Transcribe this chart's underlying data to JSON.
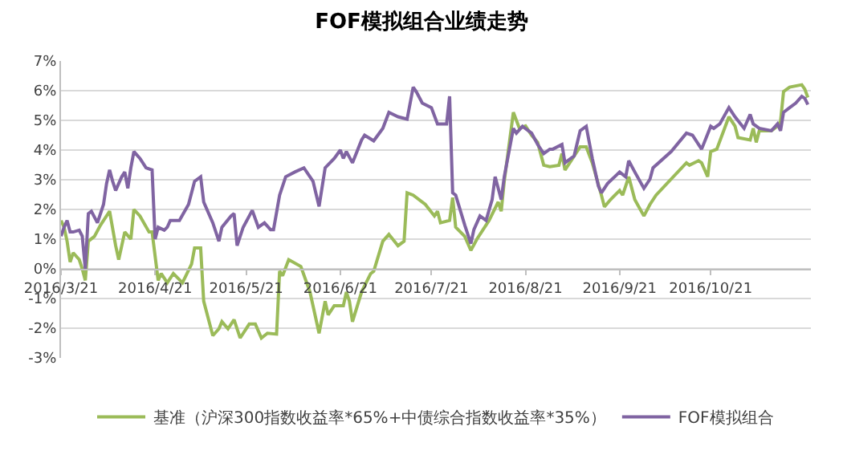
{
  "chart_data": {
    "type": "line",
    "title": "FOF模拟组合业绩走势",
    "xlim": [
      "2016-03-21",
      "2016-11-23"
    ],
    "xticks": [
      {
        "value": "2016-03-21",
        "label": "2016/3/21"
      },
      {
        "value": "2016-04-21",
        "label": "2016/4/21"
      },
      {
        "value": "2016-05-21",
        "label": "2016/5/21"
      },
      {
        "value": "2016-06-21",
        "label": "2016/6/21"
      },
      {
        "value": "2016-07-21",
        "label": "2016/7/21"
      },
      {
        "value": "2016-08-21",
        "label": "2016/8/21"
      },
      {
        "value": "2016-09-21",
        "label": "2016/9/21"
      },
      {
        "value": "2016-10-21",
        "label": "2016/10/21"
      }
    ],
    "ylim": [
      -3,
      7
    ],
    "yticks": [
      {
        "value": -3,
        "label": "-3%"
      },
      {
        "value": -2,
        "label": "-2%"
      },
      {
        "value": -1,
        "label": "-1%"
      },
      {
        "value": 0,
        "label": "0%"
      },
      {
        "value": 1,
        "label": "1%"
      },
      {
        "value": 2,
        "label": "2%"
      },
      {
        "value": 3,
        "label": "3%"
      },
      {
        "value": 4,
        "label": "4%"
      },
      {
        "value": 5,
        "label": "5%"
      },
      {
        "value": 6,
        "label": "6%"
      },
      {
        "value": 7,
        "label": "7%"
      }
    ],
    "grid": "y",
    "legend": "bottom",
    "marker": "none",
    "line_style": "solid",
    "series": [
      {
        "name": "基准（沪深300指数收益率*65%+中债综合指数收益率*35%）",
        "color": "#9bbb59",
        "x": [
          "2016-03-21",
          "2016-03-22",
          "2016-03-23",
          "2016-03-24",
          "2016-03-25",
          "2016-03-27",
          "2016-03-28",
          "2016-03-29",
          "2016-03-30",
          "2016-04-01",
          "2016-04-03",
          "2016-04-06",
          "2016-04-08",
          "2016-04-09",
          "2016-04-11",
          "2016-04-13",
          "2016-04-14",
          "2016-04-16",
          "2016-04-19",
          "2016-04-20",
          "2016-04-22",
          "2016-04-23",
          "2016-04-25",
          "2016-04-27",
          "2016-04-30",
          "2016-05-03",
          "2016-05-04",
          "2016-05-06",
          "2016-05-07",
          "2016-05-10",
          "2016-05-12",
          "2016-05-13",
          "2016-05-15",
          "2016-05-17",
          "2016-05-19",
          "2016-05-22",
          "2016-05-24",
          "2016-05-26",
          "2016-05-28",
          "2016-05-31",
          "2016-06-01",
          "2016-06-02",
          "2016-06-04",
          "2016-06-08",
          "2016-06-11",
          "2016-06-14",
          "2016-06-16",
          "2016-06-17",
          "2016-06-19",
          "2016-06-22",
          "2016-06-23",
          "2016-06-24",
          "2016-06-25",
          "2016-06-28",
          "2016-07-01",
          "2016-07-02",
          "2016-07-05",
          "2016-07-07",
          "2016-07-10",
          "2016-07-12",
          "2016-07-13",
          "2016-07-15",
          "2016-07-19",
          "2016-07-22",
          "2016-07-23",
          "2016-07-24",
          "2016-07-27",
          "2016-07-28",
          "2016-07-29",
          "2016-08-01",
          "2016-08-03",
          "2016-08-05",
          "2016-08-09",
          "2016-08-12",
          "2016-08-13",
          "2016-08-14",
          "2016-08-17",
          "2016-08-19",
          "2016-08-21",
          "2016-08-23",
          "2016-08-25",
          "2016-08-27",
          "2016-08-29",
          "2016-09-01",
          "2016-09-02",
          "2016-09-03",
          "2016-09-05",
          "2016-09-08",
          "2016-09-10",
          "2016-09-12",
          "2016-09-15",
          "2016-09-16",
          "2016-09-18",
          "2016-09-21",
          "2016-09-22",
          "2016-09-24",
          "2016-09-26",
          "2016-09-29",
          "2016-10-01",
          "2016-10-03",
          "2016-10-13",
          "2016-10-14",
          "2016-10-17",
          "2016-10-18",
          "2016-10-20",
          "2016-10-21",
          "2016-10-23",
          "2016-10-27",
          "2016-10-29",
          "2016-10-30",
          "2016-11-03",
          "2016-11-04",
          "2016-11-05",
          "2016-11-06",
          "2016-11-10",
          "2016-11-12",
          "2016-11-13",
          "2016-11-14",
          "2016-11-16",
          "2016-11-20",
          "2016-11-21",
          "2016-11-22"
        ],
        "values": [
          1.63,
          1.4,
          0.93,
          0.23,
          0.54,
          0.31,
          0.0,
          -0.39,
          0.93,
          1.09,
          1.47,
          1.94,
          0.78,
          0.31,
          1.24,
          1.0,
          2.0,
          1.78,
          1.24,
          1.24,
          -0.39,
          -0.16,
          -0.47,
          -0.16,
          -0.47,
          0.16,
          0.7,
          0.7,
          -1.09,
          -2.25,
          -2.02,
          -1.78,
          -2.02,
          -1.71,
          -2.33,
          -1.86,
          -1.86,
          -2.33,
          -2.17,
          -2.2,
          -0.08,
          -0.23,
          0.31,
          0.08,
          -0.78,
          -2.17,
          -1.09,
          -1.55,
          -1.24,
          -1.24,
          -0.78,
          -1.09,
          -1.78,
          -0.78,
          -0.16,
          -0.08,
          0.93,
          1.16,
          0.78,
          0.93,
          2.56,
          2.48,
          2.17,
          1.78,
          1.94,
          1.55,
          1.63,
          2.4,
          1.4,
          1.09,
          0.62,
          1.0,
          1.63,
          2.25,
          1.94,
          2.95,
          5.27,
          4.73,
          4.81,
          4.5,
          4.26,
          3.49,
          3.44,
          3.49,
          3.88,
          3.33,
          3.64,
          4.11,
          4.11,
          3.57,
          2.48,
          2.09,
          2.33,
          2.64,
          2.48,
          3.1,
          2.33,
          1.78,
          2.17,
          2.48,
          3.57,
          3.49,
          3.64,
          3.57,
          3.1,
          3.95,
          4.03,
          5.12,
          4.81,
          4.42,
          4.34,
          4.73,
          4.26,
          4.65,
          4.65,
          4.81,
          4.96,
          5.97,
          6.12,
          6.2,
          6.05,
          5.77
        ]
      },
      {
        "name": "FOF模拟组合",
        "color": "#8064a2",
        "x": [
          "2016-03-21",
          "2016-03-22",
          "2016-03-23",
          "2016-03-24",
          "2016-03-25",
          "2016-03-27",
          "2016-03-28",
          "2016-03-29",
          "2016-03-30",
          "2016-03-31",
          "2016-04-02",
          "2016-04-04",
          "2016-04-05",
          "2016-04-06",
          "2016-04-07",
          "2016-04-08",
          "2016-04-10",
          "2016-04-11",
          "2016-04-12",
          "2016-04-13",
          "2016-04-14",
          "2016-04-16",
          "2016-04-18",
          "2016-04-20",
          "2016-04-21",
          "2016-04-22",
          "2016-04-24",
          "2016-04-25",
          "2016-04-26",
          "2016-04-29",
          "2016-05-02",
          "2016-05-04",
          "2016-05-06",
          "2016-05-07",
          "2016-05-10",
          "2016-05-12",
          "2016-05-13",
          "2016-05-16",
          "2016-05-17",
          "2016-05-18",
          "2016-05-20",
          "2016-05-23",
          "2016-05-25",
          "2016-05-27",
          "2016-05-29",
          "2016-05-30",
          "2016-06-01",
          "2016-06-03",
          "2016-06-06",
          "2016-06-09",
          "2016-06-12",
          "2016-06-14",
          "2016-06-16",
          "2016-06-19",
          "2016-06-21",
          "2016-06-22",
          "2016-06-23",
          "2016-06-25",
          "2016-06-28",
          "2016-06-29",
          "2016-07-02",
          "2016-07-05",
          "2016-07-07",
          "2016-07-10",
          "2016-07-13",
          "2016-07-15",
          "2016-07-16",
          "2016-07-18",
          "2016-07-21",
          "2016-07-23",
          "2016-07-26",
          "2016-07-27",
          "2016-07-28",
          "2016-07-29",
          "2016-08-01",
          "2016-08-03",
          "2016-08-04",
          "2016-08-06",
          "2016-08-08",
          "2016-08-10",
          "2016-08-11",
          "2016-08-13",
          "2016-08-14",
          "2016-08-17",
          "2016-08-18",
          "2016-08-20",
          "2016-08-23",
          "2016-08-25",
          "2016-08-27",
          "2016-08-29",
          "2016-08-30",
          "2016-09-02",
          "2016-09-03",
          "2016-09-06",
          "2016-09-08",
          "2016-09-10",
          "2016-09-12",
          "2016-09-14",
          "2016-09-15",
          "2016-09-17",
          "2016-09-21",
          "2016-09-23",
          "2016-09-24",
          "2016-09-26",
          "2016-09-29",
          "2016-10-01",
          "2016-10-02",
          "2016-10-08",
          "2016-10-13",
          "2016-10-15",
          "2016-10-18",
          "2016-10-21",
          "2016-10-22",
          "2016-10-24",
          "2016-10-27",
          "2016-10-29",
          "2016-11-01",
          "2016-11-03",
          "2016-11-04",
          "2016-11-06",
          "2016-11-10",
          "2016-11-12",
          "2016-11-13",
          "2016-11-14",
          "2016-11-16",
          "2016-11-18",
          "2016-11-20",
          "2016-11-21",
          "2016-11-22"
        ],
        "values": [
          1.1,
          1.4,
          1.63,
          1.24,
          1.24,
          1.3,
          1.1,
          0.0,
          1.86,
          1.94,
          1.55,
          2.17,
          2.87,
          3.33,
          2.95,
          2.64,
          3.1,
          3.26,
          2.71,
          3.4,
          3.95,
          3.72,
          3.4,
          3.33,
          1.0,
          1.4,
          1.3,
          1.4,
          1.63,
          1.63,
          2.17,
          2.95,
          3.1,
          2.25,
          1.55,
          0.93,
          1.4,
          1.78,
          1.86,
          0.78,
          1.4,
          1.97,
          1.4,
          1.55,
          1.32,
          1.32,
          2.48,
          3.1,
          3.26,
          3.4,
          2.95,
          2.1,
          3.4,
          3.72,
          4.0,
          3.72,
          3.95,
          3.57,
          4.34,
          4.5,
          4.31,
          4.73,
          5.27,
          5.12,
          5.04,
          6.12,
          5.97,
          5.58,
          5.43,
          4.88,
          4.88,
          5.81,
          2.56,
          2.48,
          1.47,
          0.85,
          1.32,
          1.78,
          1.63,
          2.33,
          3.1,
          2.33,
          3.1,
          4.73,
          4.57,
          4.8,
          4.57,
          4.19,
          3.88,
          4.03,
          4.03,
          4.19,
          3.57,
          3.8,
          4.65,
          4.8,
          3.72,
          2.79,
          2.56,
          2.87,
          3.26,
          3.1,
          3.64,
          3.26,
          2.71,
          3.02,
          3.4,
          3.95,
          4.57,
          4.5,
          4.03,
          4.8,
          4.73,
          4.88,
          5.43,
          5.12,
          4.73,
          5.2,
          4.88,
          4.73,
          4.65,
          4.88,
          4.65,
          5.27,
          5.43,
          5.58,
          5.81,
          5.74,
          5.53
        ]
      }
    ]
  }
}
